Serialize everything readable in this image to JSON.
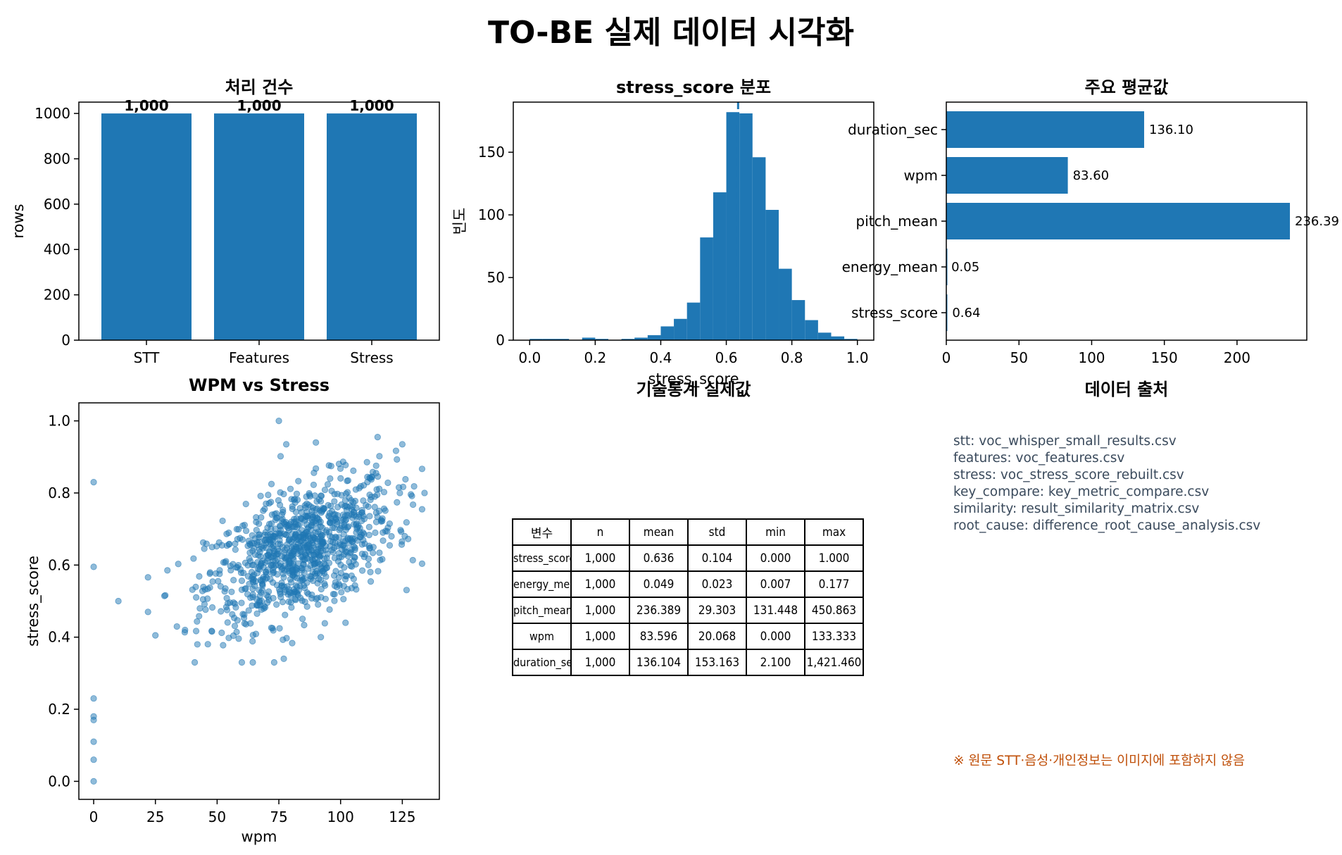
{
  "title": "TO-BE 실제 데이터 시각화",
  "panels": {
    "counts": {
      "title": "처리 건수"
    },
    "hist": {
      "title": "stress_score 분포"
    },
    "means": {
      "title": "주요 평균값"
    },
    "scatter": {
      "title": "WPM vs Stress"
    },
    "table": {
      "title": "기술통계 실제값"
    },
    "sources": {
      "title": "데이터 출처"
    }
  },
  "chart_data": [
    {
      "type": "bar",
      "title": "처리 건수",
      "categories": [
        "STT",
        "Features",
        "Stress"
      ],
      "values": [
        1000,
        1000,
        1000
      ],
      "value_labels": [
        "1,000",
        "1,000",
        "1,000"
      ],
      "ylabel": "rows",
      "xlabel": "",
      "ylim": [
        0,
        1050
      ],
      "yticks": [
        0,
        200,
        400,
        600,
        800,
        1000
      ],
      "color": "#1f77b4"
    },
    {
      "type": "histogram",
      "title": "stress_score 분포",
      "xlabel": "stress_score",
      "ylabel": "빈도",
      "xlim": [
        -0.05,
        1.05
      ],
      "ylim": [
        0,
        190
      ],
      "xticks": [
        0.0,
        0.2,
        0.4,
        0.6,
        0.8,
        1.0
      ],
      "xtick_labels": [
        "0.0",
        "0.2",
        "0.4",
        "0.6",
        "0.8",
        "1.0"
      ],
      "yticks": [
        0,
        50,
        100,
        150
      ],
      "bin_edges": [
        0.0,
        0.04,
        0.08,
        0.12,
        0.16,
        0.2,
        0.24,
        0.28,
        0.32,
        0.36,
        0.4,
        0.44,
        0.48,
        0.52,
        0.56,
        0.6,
        0.64,
        0.68,
        0.72,
        0.76,
        0.8,
        0.84,
        0.88,
        0.92,
        0.96,
        1.0
      ],
      "counts": [
        1,
        1,
        1,
        0,
        2,
        1,
        0,
        1,
        2,
        4,
        11,
        17,
        30,
        82,
        118,
        182,
        181,
        146,
        104,
        57,
        32,
        16,
        6,
        3,
        1
      ],
      "mean_line": 0.636,
      "color": "#1f77b4"
    },
    {
      "type": "bar",
      "orientation": "horizontal",
      "title": "주요 평균값",
      "categories": [
        "duration_sec",
        "wpm",
        "pitch_mean",
        "energy_mean",
        "stress_score"
      ],
      "values": [
        136.1,
        83.6,
        236.39,
        0.05,
        0.64
      ],
      "value_labels": [
        "136.10",
        "83.60",
        "236.39",
        "0.05",
        "0.64"
      ],
      "xlim": [
        0,
        248
      ],
      "xticks": [
        0,
        50,
        100,
        150,
        200
      ],
      "color": "#1f77b4"
    },
    {
      "type": "scatter",
      "title": "WPM vs Stress",
      "xlabel": "wpm",
      "ylabel": "stress_score",
      "xlim": [
        -6,
        140
      ],
      "ylim": [
        -0.05,
        1.05
      ],
      "xticks": [
        0,
        25,
        50,
        75,
        100,
        125
      ],
      "yticks": [
        0.0,
        0.2,
        0.4,
        0.6,
        0.8,
        1.0
      ],
      "ytick_labels": [
        "0.0",
        "0.2",
        "0.4",
        "0.6",
        "0.8",
        "1.0"
      ],
      "points_visible": 1000,
      "anchor_points": [
        [
          0,
          0.83
        ],
        [
          0,
          0.595
        ],
        [
          0,
          0.23
        ],
        [
          0,
          0.18
        ],
        [
          0,
          0.17
        ],
        [
          0,
          0.11
        ],
        [
          0,
          0.06
        ],
        [
          0,
          0.0
        ],
        [
          10,
          0.5
        ],
        [
          22,
          0.47
        ],
        [
          25,
          0.405
        ],
        [
          37,
          0.42
        ],
        [
          42,
          0.38
        ],
        [
          60,
          0.33
        ],
        [
          77,
          0.34
        ],
        [
          75,
          1.0
        ],
        [
          78,
          0.935
        ],
        [
          90,
          0.94
        ],
        [
          115,
          0.955
        ],
        [
          125,
          0.935
        ],
        [
          134,
          0.8
        ],
        [
          102,
          0.44
        ],
        [
          92,
          0.4
        ],
        [
          126,
          0.68
        ],
        [
          124,
          0.8
        ]
      ],
      "cluster": {
        "wpm_mean": 84,
        "wpm_std": 19,
        "stress_mean": 0.64,
        "stress_std": 0.1,
        "correlation": 0.5
      },
      "color": "#1f77b4"
    }
  ],
  "stats_table": {
    "headers": [
      "변수",
      "n",
      "mean",
      "std",
      "min",
      "max"
    ],
    "rows": [
      [
        "stress_score",
        "1,000",
        "0.636",
        "0.104",
        "0.000",
        "1.000"
      ],
      [
        "energy_mean",
        "1,000",
        "0.049",
        "0.023",
        "0.007",
        "0.177"
      ],
      [
        "pitch_mean",
        "1,000",
        "236.389",
        "29.303",
        "131.448",
        "450.863"
      ],
      [
        "wpm",
        "1,000",
        "83.596",
        "20.068",
        "0.000",
        "133.333"
      ],
      [
        "duration_sec",
        "1,000",
        "136.104",
        "153.163",
        "2.100",
        "1,421.460"
      ]
    ]
  },
  "sources": [
    "stt: voc_whisper_small_results.csv",
    "features: voc_features.csv",
    "stress: voc_stress_score_rebuilt.csv",
    "key_compare: key_metric_compare.csv",
    "similarity: result_similarity_matrix.csv",
    "root_cause: difference_root_cause_analysis.csv"
  ],
  "note": "※ 원문 STT·음성·개인정보는 이미지에 포함하지 않음"
}
